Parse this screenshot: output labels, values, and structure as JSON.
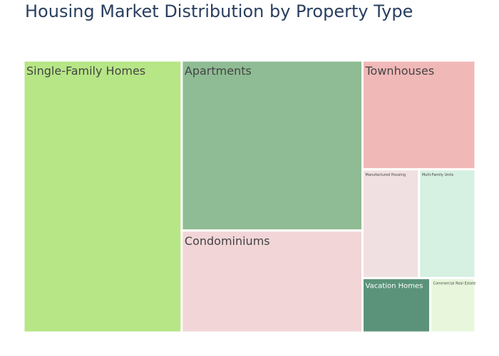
{
  "chart_data": {
    "type": "treemap",
    "title": "Housing Market Distribution by Property Type",
    "items": [
      {
        "label": "Single-Family Homes",
        "value": 35,
        "color": "#b7e686",
        "text_color": "#444444"
      },
      {
        "label": "Apartments",
        "value": 25,
        "color": "#8fbc94",
        "text_color": "#444444"
      },
      {
        "label": "Condominiums",
        "value": 15,
        "color": "#f1d5d7",
        "text_color": "#444444"
      },
      {
        "label": "Townhouses",
        "value": 10,
        "color": "#f1b8b8",
        "text_color": "#444444"
      },
      {
        "label": "Manufactured Housing",
        "value": 5,
        "color": "#f0e0e1",
        "text_color": "#444444"
      },
      {
        "label": "Multi-Family Units",
        "value": 5,
        "color": "#d6f0e2",
        "text_color": "#444444"
      },
      {
        "label": "Vacation Homes",
        "value": 3,
        "color": "#5a9379",
        "text_color": "#ffffff"
      },
      {
        "label": "Commercial Real Estate",
        "value": 2,
        "color": "#e8f7dc",
        "text_color": "#444444"
      }
    ]
  }
}
